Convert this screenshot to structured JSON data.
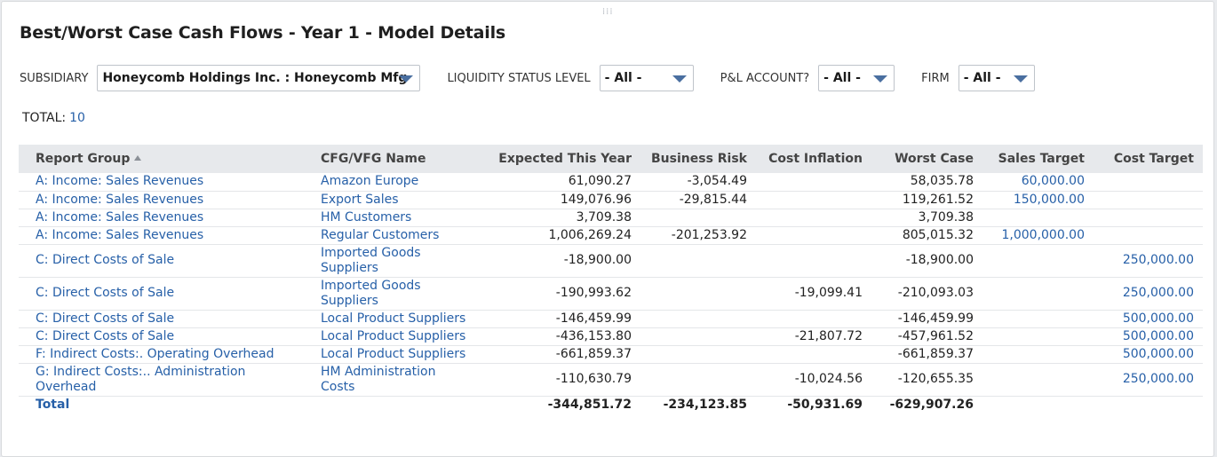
{
  "title": "Best/Worst Case Cash Flows - Year 1 - Model Details",
  "filters": [
    {
      "label": "SUBSIDIARY",
      "value": "Honeycomb Holdings Inc. : Honeycomb Mfg"
    },
    {
      "label": "LIQUIDITY STATUS LEVEL",
      "value": "- All -"
    },
    {
      "label": "P&L ACCOUNT?",
      "value": "- All -"
    },
    {
      "label": "FIRM",
      "value": "- All -"
    }
  ],
  "total": {
    "label": "TOTAL:",
    "count": "10"
  },
  "table": {
    "columns": [
      "Report Group",
      "CFG/VFG Name",
      "Expected This Year",
      "Business Risk",
      "Cost Inflation",
      "Worst Case",
      "Sales Target",
      "Cost Target"
    ],
    "rows": [
      [
        "A: Income: Sales Revenues",
        "Amazon Europe",
        "61,090.27",
        "-3,054.49",
        "",
        "58,035.78",
        "60,000.00",
        ""
      ],
      [
        "A: Income: Sales Revenues",
        "Export Sales",
        "149,076.96",
        "-29,815.44",
        "",
        "119,261.52",
        "150,000.00",
        ""
      ],
      [
        "A: Income: Sales Revenues",
        "HM Customers",
        "3,709.38",
        "",
        "",
        "3,709.38",
        "",
        ""
      ],
      [
        "A: Income: Sales Revenues",
        "Regular Customers",
        "1,006,269.24",
        "-201,253.92",
        "",
        "805,015.32",
        "1,000,000.00",
        ""
      ],
      [
        "C: Direct Costs of Sale",
        "Imported Goods Suppliers",
        "-18,900.00",
        "",
        "",
        "-18,900.00",
        "",
        "250,000.00"
      ],
      [
        "C: Direct Costs of Sale",
        "Imported Goods Suppliers",
        "-190,993.62",
        "",
        "-19,099.41",
        "-210,093.03",
        "",
        "250,000.00"
      ],
      [
        "C: Direct Costs of Sale",
        "Local Product Suppliers",
        "-146,459.99",
        "",
        "",
        "-146,459.99",
        "",
        "500,000.00"
      ],
      [
        "C: Direct Costs of Sale",
        "Local Product Suppliers",
        "-436,153.80",
        "",
        "-21,807.72",
        "-457,961.52",
        "",
        "500,000.00"
      ],
      [
        "F: Indirect Costs:. Operating Overhead",
        "Local Product Suppliers",
        "-661,859.37",
        "",
        "",
        "-661,859.37",
        "",
        "500,000.00"
      ],
      [
        "G: Indirect Costs:.. Administration Overhead",
        "HM Administration Costs",
        "-110,630.79",
        "",
        "-10,024.56",
        "-120,655.35",
        "",
        "250,000.00"
      ]
    ],
    "totals": [
      "Total",
      "",
      "-344,851.72",
      "-234,123.85",
      "-50,931.69",
      "-629,907.26",
      "",
      ""
    ]
  }
}
